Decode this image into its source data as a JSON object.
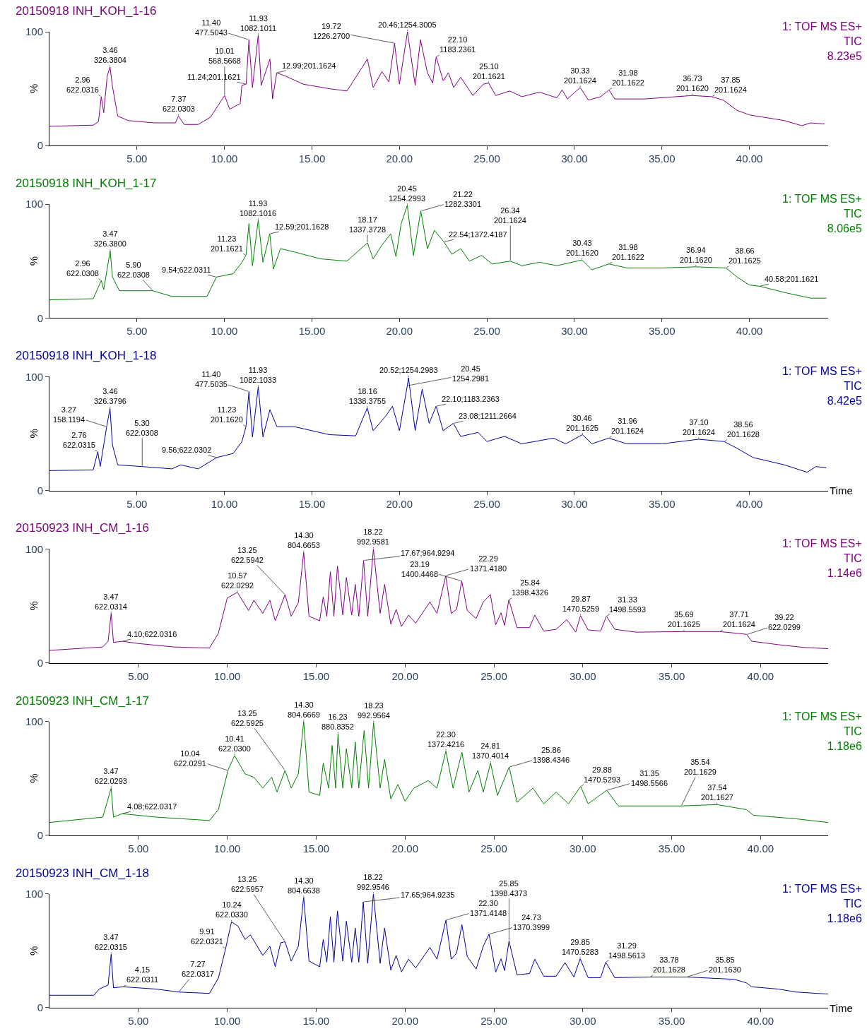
{
  "chart_data": [
    {
      "type": "line",
      "title": "20150918 INH_KOH_1-16",
      "ylabel": "%",
      "xlim": [
        0,
        44.5
      ],
      "ylim": [
        0,
        100
      ],
      "xticks": [
        {
          "value": 5,
          "label": "5.00"
        },
        {
          "value": 10,
          "label": "10.00"
        },
        {
          "value": 15,
          "label": "15.00"
        },
        {
          "value": 20,
          "label": "20.00"
        },
        {
          "value": 25,
          "label": "25.00"
        },
        {
          "value": 30,
          "label": "30.00"
        },
        {
          "value": 35,
          "label": "35.00"
        },
        {
          "value": 40,
          "label": "40.00"
        }
      ],
      "yticks": [
        0,
        100
      ],
      "x": [
        0,
        2.5,
        2.8,
        2.96,
        3.1,
        3.3,
        3.46,
        3.6,
        3.9,
        4.5,
        6,
        7.2,
        7.37,
        7.7,
        8.5,
        9.2,
        10.01,
        10.3,
        10.9,
        11.0,
        11.24,
        11.4,
        11.6,
        11.93,
        12.1,
        12.6,
        12.75,
        12.99,
        13.5,
        14.5,
        16,
        17,
        18.17,
        18.5,
        19.0,
        19.4,
        19.72,
        20.0,
        20.46,
        20.9,
        21.2,
        21.6,
        21.9,
        22.1,
        22.5,
        22.8,
        23.1,
        23.5,
        24.2,
        24.8,
        25.1,
        25.5,
        26.3,
        27,
        28,
        29.0,
        29.3,
        29.6,
        30.33,
        30.8,
        31.5,
        31.98,
        32.3,
        34,
        36.73,
        37.85,
        38.5,
        39.3,
        40,
        42,
        43,
        43.5,
        44.3
      ],
      "series": [
        {
          "color": "#800080",
          "values": [
            17,
            18,
            21,
            43,
            29,
            61,
            69,
            52,
            26,
            22,
            20,
            20,
            26,
            18.6,
            18.6,
            25,
            44,
            32,
            37,
            53,
            54,
            93,
            51,
            97,
            53,
            76,
            41,
            64,
            61,
            54,
            50,
            48,
            76,
            51,
            65,
            56,
            90,
            54,
            100,
            53,
            93,
            64,
            55,
            78,
            57,
            64,
            51,
            60,
            44,
            54,
            55,
            44,
            48,
            43,
            47,
            42,
            49,
            41,
            51,
            40,
            43,
            49,
            41,
            41,
            44,
            43,
            40,
            31,
            27,
            22,
            17.5,
            20,
            19
          ]
        }
      ],
      "annotations": [
        "1: TOF MS ES+\nTIC\n8.23e5",
        {
          "text": "2.96\n622.0316",
          "x": 2.96,
          "y": 43
        },
        {
          "text": "3.46\n326.3804",
          "x": 3.46,
          "y": 69
        },
        {
          "text": "7.37\n622.0303",
          "x": 7.37,
          "y": 26
        },
        {
          "text": "10.01\n568.5668",
          "x": 10.01,
          "y": 44
        },
        {
          "text": "11.24;201.1621",
          "x": 11.24,
          "y": 54
        },
        {
          "text": "11.40\n477.5043",
          "x": 11.4,
          "y": 93
        },
        {
          "text": "11.93\n1082.1011",
          "x": 11.93,
          "y": 97
        },
        {
          "text": "12.99;201.1624",
          "x": 12.99,
          "y": 64
        },
        {
          "text": "19.72\n1226.2700",
          "x": 19.72,
          "y": 90
        },
        {
          "text": "20.46;1254.3005",
          "x": 20.46,
          "y": 100
        },
        {
          "text": "22.10\n1183.2361",
          "x": 22.1,
          "y": 78
        },
        {
          "text": "25.10\n201.1621",
          "x": 25.1,
          "y": 55
        },
        {
          "text": "30.33\n201.1624",
          "x": 30.33,
          "y": 51
        },
        {
          "text": "31.98\n201.1622",
          "x": 31.98,
          "y": 49
        },
        {
          "text": "36.73\n201.1620",
          "x": 36.73,
          "y": 44
        },
        {
          "text": "37.85\n201.1624",
          "x": 37.85,
          "y": 43
        }
      ]
    },
    {
      "type": "line",
      "title": "20150918 INH_KOH_1-17",
      "ylabel": "%",
      "xlim": [
        0,
        44.5
      ],
      "ylim": [
        0,
        100
      ],
      "xticks": [
        {
          "value": 5,
          "label": "5.00"
        },
        {
          "value": 10,
          "label": "10.00"
        },
        {
          "value": 15,
          "label": "15.00"
        },
        {
          "value": 20,
          "label": "20.00"
        },
        {
          "value": 25,
          "label": "25.00"
        },
        {
          "value": 30,
          "label": "30.00"
        },
        {
          "value": 35,
          "label": "35.00"
        },
        {
          "value": 40,
          "label": "40.00"
        }
      ],
      "yticks": [
        0,
        100
      ],
      "x": [
        0,
        2.5,
        2.96,
        3.1,
        3.47,
        3.6,
        4,
        5.9,
        7,
        9,
        9.54,
        10.5,
        11.0,
        11.23,
        11.4,
        11.6,
        11.93,
        12.2,
        12.59,
        12.8,
        13.2,
        14,
        15.5,
        17,
        18.17,
        18.5,
        19,
        19.5,
        19.8,
        20.1,
        20.45,
        20.8,
        21.22,
        21.6,
        22.0,
        22.54,
        23,
        23.5,
        24,
        24.7,
        25.3,
        26.34,
        27,
        28,
        29,
        30.43,
        31,
        31.98,
        33,
        35,
        36.94,
        38.66,
        39.3,
        40,
        40.58,
        42,
        43.5,
        44.4
      ],
      "series": [
        {
          "color": "#008000",
          "values": [
            16,
            17,
            33,
            25,
            59,
            36,
            24,
            24,
            19,
            19,
            36,
            39,
            49,
            55,
            83,
            46,
            86,
            49,
            74,
            43,
            61,
            58,
            52,
            50,
            66,
            52,
            64,
            74,
            54,
            83,
            99,
            55,
            94,
            61,
            77,
            67,
            56,
            61,
            50,
            55,
            47.5,
            50,
            46,
            49,
            46,
            51,
            42.5,
            47.5,
            44,
            44,
            45,
            44,
            36,
            29,
            28,
            22.5,
            17.5,
            17.5
          ]
        }
      ],
      "annotations": [
        "1: TOF MS ES+\nTIC\n8.06e5",
        {
          "text": "2.96\n622.0308",
          "x": 2.96,
          "y": 33
        },
        {
          "text": "3.47\n326.3800",
          "x": 3.47,
          "y": 59
        },
        {
          "text": "5.90\n622.0308",
          "x": 5.9,
          "y": 24
        },
        {
          "text": "9.54;622.0311",
          "x": 9.54,
          "y": 36
        },
        {
          "text": "11.23\n201.1621",
          "x": 11.23,
          "y": 55
        },
        {
          "text": "11.93\n1082.1016",
          "x": 11.93,
          "y": 86
        },
        {
          "text": "12.59;201.1628",
          "x": 12.59,
          "y": 74
        },
        {
          "text": "18.17\n1337.3728",
          "x": 18.17,
          "y": 66
        },
        {
          "text": "20.45\n1254.2993",
          "x": 20.45,
          "y": 99
        },
        {
          "text": "21.22\n1282.3301",
          "x": 21.22,
          "y": 94
        },
        {
          "text": "22.54;1372.4187",
          "x": 22.54,
          "y": 67
        },
        {
          "text": "26.34\n201.1624",
          "x": 26.34,
          "y": 50
        },
        {
          "text": "30.43\n201.1620",
          "x": 30.43,
          "y": 51
        },
        {
          "text": "31.98\n201.1622",
          "x": 31.98,
          "y": 47.5
        },
        {
          "text": "36.94\n201.1620",
          "x": 36.94,
          "y": 45
        },
        {
          "text": "38.66\n201.1625",
          "x": 38.66,
          "y": 44
        },
        {
          "text": "40.58;201.1621",
          "x": 40.58,
          "y": 28
        }
      ]
    },
    {
      "type": "line",
      "title": "20150918 INH_KOH_1-18",
      "ylabel": "%",
      "xlabel": "Time",
      "xlim": [
        0,
        44.5
      ],
      "ylim": [
        0,
        100
      ],
      "xticks": [
        {
          "value": 5,
          "label": "5.00"
        },
        {
          "value": 10,
          "label": "10.00"
        },
        {
          "value": 15,
          "label": "15.00"
        },
        {
          "value": 20,
          "label": "20.00"
        },
        {
          "value": 25,
          "label": "25.00"
        },
        {
          "value": 30,
          "label": "30.00"
        },
        {
          "value": 35,
          "label": "35.00"
        },
        {
          "value": 40,
          "label": "40.00"
        }
      ],
      "yticks": [
        0,
        100
      ],
      "x": [
        0,
        2.5,
        2.76,
        2.9,
        3.27,
        3.46,
        3.6,
        3.9,
        5.3,
        7,
        7.5,
        8.5,
        9.56,
        10.5,
        11.0,
        11.23,
        11.4,
        11.6,
        11.93,
        12.2,
        12.6,
        13,
        14,
        16,
        17.5,
        18.16,
        18.5,
        19.2,
        19.6,
        20.0,
        20.45,
        20.52,
        20.9,
        21.3,
        21.7,
        22.1,
        22.5,
        23.08,
        23.5,
        24.5,
        25,
        26,
        27,
        28.8,
        29.5,
        30.46,
        31,
        31.96,
        33,
        35,
        37.1,
        38.56,
        39.3,
        40.2,
        42,
        43.3,
        43.8,
        44.4
      ],
      "series": [
        {
          "color": "#0000a0",
          "values": [
            17.5,
            18,
            34,
            21,
            56,
            72,
            40,
            22.5,
            21,
            19,
            22.5,
            19,
            29,
            32.5,
            43,
            56,
            87,
            47,
            91,
            47,
            71,
            56,
            56,
            49,
            48,
            72.5,
            52.5,
            65,
            74,
            52.5,
            92,
            99,
            52.5,
            89,
            59,
            74,
            52.5,
            59,
            47.5,
            51,
            43,
            47.5,
            41,
            46,
            41,
            49,
            41,
            46,
            41,
            41,
            45,
            43,
            37,
            29,
            22.5,
            16,
            21,
            20
          ]
        }
      ],
      "annotations": [
        "1: TOF MS ES+\nTIC\n8.42e5",
        {
          "text": "2.76\n622.0315",
          "x": 2.76,
          "y": 34
        },
        {
          "text": "3.27\n158.1194",
          "x": 3.27,
          "y": 56
        },
        {
          "text": "3.46\n326.3796",
          "x": 3.46,
          "y": 72
        },
        {
          "text": "5.30\n622.0308",
          "x": 5.3,
          "y": 21
        },
        {
          "text": "9.56;622.0302",
          "x": 9.56,
          "y": 29
        },
        {
          "text": "11.23\n201.1620",
          "x": 11.23,
          "y": 56
        },
        {
          "text": "11.40\n477.5035",
          "x": 11.4,
          "y": 87
        },
        {
          "text": "11.93\n1082.1033",
          "x": 11.93,
          "y": 91
        },
        {
          "text": "18.16\n1338.3755",
          "x": 18.16,
          "y": 72.5
        },
        {
          "text": "20.45\n1254.2981",
          "x": 20.45,
          "y": 92
        },
        {
          "text": "20.52;1254.2983",
          "x": 20.52,
          "y": 99
        },
        {
          "text": "22.10;1183.2363",
          "x": 22.1,
          "y": 74
        },
        {
          "text": "23.08;1211.2664",
          "x": 23.08,
          "y": 59
        },
        {
          "text": "30.46\n201.1625",
          "x": 30.46,
          "y": 49
        },
        {
          "text": "31.96\n201.1624",
          "x": 31.96,
          "y": 46
        },
        {
          "text": "37.10\n201.1624",
          "x": 37.1,
          "y": 45
        },
        {
          "text": "38.56\n201.1628",
          "x": 38.56,
          "y": 43
        }
      ]
    },
    {
      "type": "line",
      "title": "20150923 INH_CM_1-16",
      "ylabel": "%",
      "xlim": [
        0,
        43.8
      ],
      "ylim": [
        0,
        100
      ],
      "xticks": [
        {
          "value": 5,
          "label": "5.00"
        },
        {
          "value": 10,
          "label": "10.00"
        },
        {
          "value": 15,
          "label": "15.00"
        },
        {
          "value": 20,
          "label": "20.00"
        },
        {
          "value": 25,
          "label": "25.00"
        },
        {
          "value": 30,
          "label": "30.00"
        },
        {
          "value": 35,
          "label": "35.00"
        },
        {
          "value": 40,
          "label": "40.00"
        }
      ],
      "yticks": [
        0,
        100
      ],
      "x": [
        0,
        3,
        3.3,
        3.47,
        3.6,
        4.1,
        5,
        7,
        9,
        9.5,
        10,
        10.57,
        11.2,
        11.5,
        12,
        12.4,
        12.7,
        13.25,
        13.6,
        14.0,
        14.3,
        14.6,
        15.2,
        15.4,
        15.6,
        15.8,
        16,
        16.2,
        16.5,
        16.7,
        17.0,
        17.2,
        17.4,
        17.67,
        17.9,
        18.22,
        18.6,
        18.85,
        19.2,
        19.5,
        19.8,
        20.2,
        20.6,
        21.4,
        21.8,
        22.29,
        22.6,
        22.9,
        23.19,
        23.5,
        24.0,
        24.4,
        24.8,
        25.1,
        25.4,
        25.6,
        25.84,
        26.3,
        27,
        27.3,
        27.8,
        28.5,
        29.1,
        29.6,
        29.87,
        30.3,
        31.0,
        31.33,
        31.8,
        33,
        35.69,
        37.71,
        39,
        39.22,
        39.5,
        41,
        42.5,
        43.8
      ],
      "series": [
        {
          "color": "#800080",
          "values": [
            11,
            14,
            19,
            43.5,
            18,
            19,
            17,
            14,
            13,
            26,
            57,
            62,
            46,
            55,
            43.5,
            55,
            37,
            60,
            41,
            53,
            97,
            41,
            37,
            58,
            41,
            80,
            41,
            85,
            42,
            75,
            42,
            69,
            41,
            90,
            41,
            100,
            43.5,
            69,
            34,
            47,
            32,
            42,
            35,
            53.5,
            43.5,
            76.6,
            43.5,
            47,
            72,
            46,
            39,
            53.5,
            60,
            33.5,
            44,
            33,
            55.5,
            31,
            31,
            42,
            28,
            29.5,
            38,
            27,
            41.5,
            29,
            28,
            41,
            29.5,
            27,
            27.5,
            27.5,
            25.5,
            25,
            19,
            16,
            13.5,
            12.5
          ]
        }
      ],
      "annotations": [
        "1: TOF MS ES+\nTIC\n1.14e6",
        {
          "text": "3.47\n622.0314",
          "x": 3.47,
          "y": 43.5
        },
        {
          "text": "4.10;622.0316",
          "x": 4.1,
          "y": 19
        },
        {
          "text": "10.57\n622.0292",
          "x": 10.57,
          "y": 62
        },
        {
          "text": "13.25\n622.5942",
          "x": 13.25,
          "y": 60
        },
        {
          "text": "14.30\n804.6653",
          "x": 14.3,
          "y": 97
        },
        {
          "text": "17.67;964.9294",
          "x": 17.67,
          "y": 90
        },
        {
          "text": "18.22\n992.9581",
          "x": 18.22,
          "y": 100
        },
        {
          "text": "22.29\n1371.4180",
          "x": 22.29,
          "y": 76.6
        },
        {
          "text": "23.19\n1400.4468",
          "x": 23.19,
          "y": 72
        },
        {
          "text": "25.84\n1398.4326",
          "x": 25.84,
          "y": 55.5
        },
        {
          "text": "29.87\n1470.5259",
          "x": 29.87,
          "y": 41.5
        },
        {
          "text": "31.33\n1498.5593",
          "x": 31.33,
          "y": 41
        },
        {
          "text": "35.69\n201.1625",
          "x": 35.69,
          "y": 27.5
        },
        {
          "text": "37.71\n201.1624",
          "x": 37.71,
          "y": 27.5
        },
        {
          "text": "39.22\n622.0299",
          "x": 39.22,
          "y": 25
        }
      ]
    },
    {
      "type": "line",
      "title": "20150923 INH_CM_1-17",
      "ylabel": "%",
      "xlim": [
        0,
        43.8
      ],
      "ylim": [
        0,
        100
      ],
      "xticks": [
        {
          "value": 5,
          "label": "5.00"
        },
        {
          "value": 10,
          "label": "10.00"
        },
        {
          "value": 15,
          "label": "15.00"
        },
        {
          "value": 20,
          "label": "20.00"
        },
        {
          "value": 25,
          "label": "25.00"
        },
        {
          "value": 30,
          "label": "30.00"
        },
        {
          "value": 35,
          "label": "35.00"
        },
        {
          "value": 40,
          "label": "40.00"
        }
      ],
      "yticks": [
        0,
        100
      ],
      "x": [
        0,
        3,
        3.47,
        3.6,
        4.08,
        6,
        9,
        9.5,
        10.04,
        10.41,
        11,
        11.5,
        12,
        12.5,
        12.8,
        13.25,
        13.6,
        14.0,
        14.3,
        14.6,
        15.2,
        15.4,
        15.7,
        15.9,
        16.1,
        16.23,
        16.5,
        16.7,
        17.0,
        17.2,
        17.4,
        17.7,
        17.95,
        18.23,
        18.6,
        18.85,
        19.2,
        19.6,
        20,
        20.5,
        21.3,
        21.8,
        22.3,
        22.7,
        23.2,
        23.6,
        24.1,
        24.4,
        24.81,
        25.2,
        25.86,
        26.3,
        27.2,
        27.8,
        28.5,
        29.2,
        29.88,
        30.3,
        31.35,
        32,
        35.54,
        37.54,
        39.2,
        39.6,
        42,
        43.8
      ],
      "series": [
        {
          "color": "#008000",
          "values": [
            11.3,
            16,
            41.5,
            16,
            19,
            16,
            13,
            22.6,
            57,
            70,
            54,
            51,
            41.5,
            51,
            38,
            57,
            41.5,
            54,
            100,
            38,
            35,
            63.5,
            41.5,
            79,
            41.5,
            89,
            41.5,
            76,
            41.5,
            82,
            41.5,
            92,
            41.5,
            99,
            41.5,
            66.7,
            32,
            44.7,
            30,
            41.5,
            48,
            41.5,
            74,
            41.5,
            73,
            38,
            57,
            38,
            63.5,
            35,
            60,
            29,
            41.5,
            27.7,
            38,
            27.7,
            43,
            27.7,
            39.6,
            25.8,
            25.8,
            27,
            22.6,
            17.6,
            14.5,
            11.3
          ]
        }
      ],
      "annotations": [
        "1: TOF MS ES+\nTIC\n1.18e6",
        {
          "text": "3.47\n622.0293",
          "x": 3.47,
          "y": 41.5
        },
        {
          "text": "4.08;622.0317",
          "x": 4.08,
          "y": 19
        },
        {
          "text": "10.04\n622.0291",
          "x": 10.04,
          "y": 57
        },
        {
          "text": "10.41\n622.0300",
          "x": 10.41,
          "y": 70
        },
        {
          "text": "13.25\n622.5925",
          "x": 13.25,
          "y": 57
        },
        {
          "text": "14.30\n804.6669",
          "x": 14.3,
          "y": 100
        },
        {
          "text": "16.23\n880.8352",
          "x": 16.23,
          "y": 89
        },
        {
          "text": "18.23\n992.9564",
          "x": 18.23,
          "y": 99
        },
        {
          "text": "22.30\n1372.4216",
          "x": 22.3,
          "y": 74
        },
        {
          "text": "24.81\n1370.4014",
          "x": 24.81,
          "y": 63.5
        },
        {
          "text": "25.86\n1398.4346",
          "x": 25.86,
          "y": 60
        },
        {
          "text": "29.88\n1470.5293",
          "x": 29.88,
          "y": 43
        },
        {
          "text": "31.35\n1498.5566",
          "x": 31.35,
          "y": 39.6
        },
        {
          "text": "35.54\n201.1629",
          "x": 35.54,
          "y": 25.8
        },
        {
          "text": "37.54\n201.1627",
          "x": 37.54,
          "y": 27
        }
      ]
    },
    {
      "type": "line",
      "title": "20150923 INH_CM_1-18",
      "ylabel": "%",
      "xlabel": "Time",
      "xlim": [
        0,
        43.8
      ],
      "ylim": [
        0,
        100
      ],
      "xticks": [
        {
          "value": 5,
          "label": "5.00"
        },
        {
          "value": 10,
          "label": "10.00"
        },
        {
          "value": 15,
          "label": "15.00"
        },
        {
          "value": 20,
          "label": "20.00"
        },
        {
          "value": 25,
          "label": "25.00"
        },
        {
          "value": 30,
          "label": "30.00"
        },
        {
          "value": 35,
          "label": "35.00"
        },
        {
          "value": 40,
          "label": "40.00"
        }
      ],
      "yticks": [
        0,
        100
      ],
      "x": [
        0,
        2.5,
        2.8,
        3.3,
        3.47,
        3.6,
        4.15,
        6,
        7.27,
        9,
        9.5,
        9.91,
        10.24,
        10.6,
        11,
        11.3,
        12,
        12.4,
        12.7,
        13.0,
        13.25,
        13.6,
        14.0,
        14.3,
        14.6,
        15.2,
        15.4,
        15.6,
        15.8,
        16,
        16.2,
        16.5,
        16.7,
        17,
        17.2,
        17.4,
        17.65,
        17.9,
        18.22,
        18.6,
        18.85,
        19.2,
        19.5,
        19.8,
        20.2,
        20.6,
        21.4,
        21.8,
        22.3,
        22.6,
        22.9,
        23.2,
        23.5,
        24.0,
        24.4,
        24.73,
        25.1,
        25.4,
        25.6,
        25.85,
        26.3,
        27,
        27.3,
        27.8,
        28.5,
        29.0,
        29.5,
        29.85,
        30.3,
        31.0,
        31.29,
        31.8,
        33.78,
        35.85,
        38.5,
        39.2,
        39.5,
        41,
        42,
        43.8
      ],
      "series": [
        {
          "color": "#0000a0",
          "values": [
            11,
            11,
            16.4,
            20,
            47,
            17.6,
            18.4,
            16.4,
            13.8,
            12.6,
            26,
            52,
            75.5,
            71.7,
            60,
            64,
            46,
            54,
            36,
            57,
            58,
            41,
            54,
            97,
            41,
            36,
            60,
            40,
            80,
            40,
            85,
            41,
            76,
            40,
            70,
            40,
            93,
            39,
            100,
            39,
            70,
            33,
            46,
            31.5,
            42.7,
            35,
            53,
            42.7,
            77,
            42.7,
            48,
            73,
            45,
            34,
            54,
            64.6,
            31.4,
            43,
            32.7,
            58.6,
            29,
            30,
            42.7,
            27.7,
            27.7,
            39.6,
            27,
            43,
            26.4,
            26.4,
            40,
            26.4,
            27,
            27,
            25,
            21.9,
            18.4,
            16.4,
            13.8,
            12
          ]
        }
      ],
      "annotations": [
        "1: TOF MS ES+\nTIC\n1.18e6",
        {
          "text": "3.47\n622.0315",
          "x": 3.47,
          "y": 47
        },
        {
          "text": "4.15\n622.0311",
          "x": 4.15,
          "y": 18.4
        },
        {
          "text": "7.27\n622.0317",
          "x": 7.27,
          "y": 13.8
        },
        {
          "text": "9.91\n622.0321",
          "x": 9.91,
          "y": 52
        },
        {
          "text": "10.24\n622.0330",
          "x": 10.24,
          "y": 75.5
        },
        {
          "text": "13.25\n622.5957",
          "x": 13.25,
          "y": 58
        },
        {
          "text": "14.30\n804.6638",
          "x": 14.3,
          "y": 97
        },
        {
          "text": "17.65;964.9235",
          "x": 17.65,
          "y": 93
        },
        {
          "text": "18.22\n992.9546",
          "x": 18.22,
          "y": 100
        },
        {
          "text": "22.30\n1371.4148",
          "x": 22.3,
          "y": 77
        },
        {
          "text": "24.73\n1370.3999",
          "x": 24.73,
          "y": 64.6
        },
        {
          "text": "25.85\n1398.4373",
          "x": 25.85,
          "y": 58.6
        },
        {
          "text": "29.85\n1470.5283",
          "x": 29.85,
          "y": 43
        },
        {
          "text": "31.29\n1498.5613",
          "x": 31.29,
          "y": 40
        },
        {
          "text": "33.78\n201.1628",
          "x": 33.78,
          "y": 27
        },
        {
          "text": "35.85\n201.1630",
          "x": 35.85,
          "y": 27
        }
      ]
    }
  ]
}
